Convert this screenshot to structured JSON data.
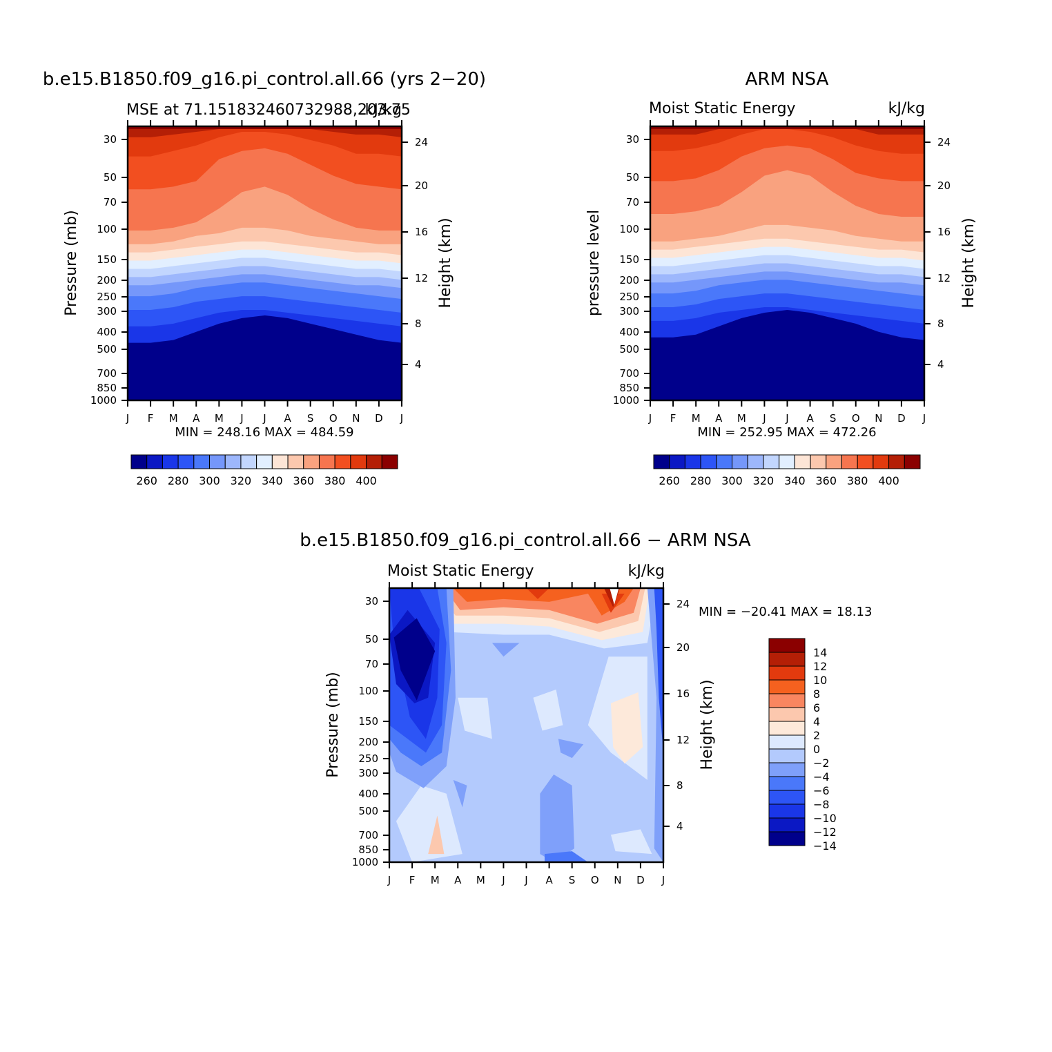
{
  "colors": {
    "panel_scale": [
      "#00008b",
      "#0b18c4",
      "#1a36e8",
      "#2d55f6",
      "#4a78fa",
      "#7597fa",
      "#9db7fc",
      "#c2d6fe",
      "#e2efff",
      "#fde5d6",
      "#fcc8ae",
      "#f9a27f",
      "#f6754f",
      "#f24f20",
      "#e23a0e",
      "#b41f06",
      "#8b0000"
    ],
    "diff_scale": [
      "#00008b",
      "#0b18c4",
      "#1a36e8",
      "#2d55f6",
      "#4a78fa",
      "#7fa0fa",
      "#b3cafd",
      "#dde9fe",
      "#fde9da",
      "#fcc8ae",
      "#f98660",
      "#f5611f",
      "#e23a0e",
      "#b41f06",
      "#8b0000"
    ]
  },
  "chart_data": [
    {
      "type": "heatmap",
      "title": "b.e15.B1850.f09_g16.pi_control.all.66 (yrs 2−20)",
      "subtitle_left": "MSE at 71.151832460732988,203.75",
      "subtitle_right": "kJ/kg",
      "ylabel": "Pressure (mb)",
      "y2label": "Height (km)",
      "x": [
        "J",
        "F",
        "M",
        "A",
        "M",
        "J",
        "J",
        "A",
        "S",
        "O",
        "N",
        "D",
        "J"
      ],
      "y_ticks": [
        "30",
        "50",
        "70",
        "100",
        "150",
        "200",
        "250",
        "300",
        "400",
        "500",
        "700",
        "850",
        "1000"
      ],
      "y2_ticks": [
        "24",
        "20",
        "16",
        "12",
        "8",
        "4"
      ],
      "min_max": "MIN = 248.16 MAX = 484.59",
      "min": 248.16,
      "max": 484.59,
      "colorbar_labels": [
        "260",
        "280",
        "300",
        "320",
        "340",
        "360",
        "380",
        "400"
      ],
      "boundary_depth_pct": [
        [
          99,
          99,
          99,
          99,
          99,
          99,
          99,
          99,
          99,
          99,
          99,
          99,
          99
        ],
        [
          96,
          96,
          97,
          98,
          99,
          99,
          99,
          99,
          99,
          98,
          97,
          97,
          96
        ],
        [
          89,
          89,
          91,
          93,
          96,
          98,
          98,
          97,
          95,
          93,
          90,
          90,
          89
        ],
        [
          77,
          77,
          78,
          80,
          88,
          91,
          92,
          90,
          86,
          82,
          79,
          78,
          77
        ],
        [
          62,
          62,
          63,
          65,
          70,
          76,
          78,
          75,
          70,
          66,
          63,
          62,
          62
        ],
        [
          57,
          57,
          58,
          60,
          61,
          63,
          63,
          62,
          60,
          59,
          58,
          57,
          57
        ],
        [
          54,
          54,
          55,
          56,
          57,
          58,
          58,
          57,
          56,
          55,
          54,
          54,
          53
        ],
        [
          51,
          51,
          52,
          53,
          54,
          55,
          55,
          54,
          53,
          52,
          51,
          51,
          50
        ],
        [
          48,
          48,
          49,
          50,
          51,
          52,
          52,
          51,
          50,
          49,
          48,
          48,
          47
        ],
        [
          45,
          45,
          46,
          47,
          48,
          49,
          49,
          48,
          47,
          46,
          45,
          45,
          44
        ],
        [
          42,
          42,
          43,
          44,
          45,
          46,
          46,
          45,
          44,
          43,
          42,
          42,
          41
        ],
        [
          38,
          38,
          39,
          41,
          42,
          43,
          43,
          42,
          41,
          40,
          39,
          38,
          37
        ],
        [
          33,
          33,
          34,
          36,
          37,
          38,
          38,
          37,
          36,
          35,
          34,
          33,
          32
        ],
        [
          27,
          27,
          28,
          30,
          32,
          33,
          33,
          32,
          31,
          30,
          29,
          28,
          27
        ],
        [
          21,
          21,
          22,
          25,
          28,
          30,
          31,
          30,
          28,
          26,
          24,
          22,
          21
        ]
      ]
    },
    {
      "type": "heatmap",
      "title": "ARM NSA",
      "subtitle_left": "Moist Static Energy",
      "subtitle_right": "kJ/kg",
      "ylabel": "pressure level",
      "y2label": "Height (km)",
      "x": [
        "J",
        "F",
        "M",
        "A",
        "M",
        "J",
        "J",
        "A",
        "S",
        "O",
        "N",
        "D",
        "J"
      ],
      "y_ticks": [
        "30",
        "50",
        "70",
        "100",
        "150",
        "200",
        "250",
        "300",
        "400",
        "500",
        "700",
        "850",
        "1000"
      ],
      "y2_ticks": [
        "24",
        "20",
        "16",
        "12",
        "8",
        "4"
      ],
      "min_max": "MIN = 252.95 MAX = 472.26",
      "min": 252.95,
      "max": 472.26,
      "colorbar_labels": [
        "260",
        "280",
        "300",
        "320",
        "340",
        "360",
        "380",
        "400"
      ],
      "boundary_depth_pct": [
        [
          99,
          99,
          99,
          99,
          99,
          99,
          99,
          99,
          99,
          99,
          99,
          99,
          99
        ],
        [
          97,
          97,
          97,
          99,
          99,
          99,
          99,
          99,
          99,
          99,
          97,
          97,
          97
        ],
        [
          91,
          91,
          92,
          94,
          97,
          99,
          99,
          98,
          96,
          93,
          91,
          90,
          90
        ],
        [
          80,
          80,
          81,
          84,
          89,
          92,
          93,
          92,
          88,
          83,
          81,
          80,
          80
        ],
        [
          68,
          68,
          69,
          71,
          76,
          82,
          84,
          82,
          76,
          71,
          68,
          67,
          67
        ],
        [
          58,
          58,
          59,
          60,
          62,
          64,
          64,
          63,
          62,
          60,
          59,
          58,
          58
        ],
        [
          55,
          55,
          56,
          57,
          58,
          59,
          59,
          58,
          57,
          56,
          55,
          55,
          54
        ],
        [
          52,
          52,
          53,
          54,
          55,
          56,
          56,
          55,
          54,
          53,
          52,
          52,
          51
        ],
        [
          49,
          49,
          50,
          51,
          52,
          53,
          53,
          52,
          51,
          50,
          49,
          49,
          48
        ],
        [
          46,
          46,
          47,
          48,
          49,
          50,
          50,
          49,
          48,
          47,
          46,
          46,
          45
        ],
        [
          43,
          43,
          44,
          45,
          46,
          47,
          47,
          46,
          45,
          44,
          43,
          43,
          42
        ],
        [
          39,
          39,
          40,
          42,
          43,
          44,
          44,
          43,
          42,
          41,
          40,
          39,
          38
        ],
        [
          34,
          34,
          35,
          37,
          38,
          39,
          39,
          38,
          37,
          36,
          35,
          34,
          33
        ],
        [
          29,
          29,
          30,
          32,
          33,
          34,
          34,
          33,
          32,
          31,
          30,
          29,
          28
        ],
        [
          23,
          23,
          24,
          27,
          30,
          32,
          33,
          32,
          30,
          28,
          25,
          23,
          22
        ]
      ]
    },
    {
      "type": "heatmap",
      "title": "b.e15.B1850.f09_g16.pi_control.all.66 − ARM NSA",
      "subtitle_left": "Moist Static Energy",
      "subtitle_right": "kJ/kg",
      "ylabel": "Pressure (mb)",
      "y2label": "Height (km)",
      "x": [
        "J",
        "F",
        "M",
        "A",
        "M",
        "J",
        "J",
        "A",
        "S",
        "O",
        "N",
        "D",
        "J"
      ],
      "y_ticks": [
        "30",
        "50",
        "70",
        "100",
        "150",
        "200",
        "250",
        "300",
        "400",
        "500",
        "700",
        "850",
        "1000"
      ],
      "y2_ticks": [
        "24",
        "20",
        "16",
        "12",
        "8",
        "4"
      ],
      "min_max": "MIN = −20.41 MAX =   18.13",
      "min": -20.41,
      "max": 18.13,
      "colorbar_labels": [
        "14",
        "12",
        "10",
        "8",
        "6",
        "4",
        "2",
        "0",
        "−2",
        "−4",
        "−6",
        "−8",
        "−10",
        "−12",
        "−14"
      ]
    }
  ]
}
